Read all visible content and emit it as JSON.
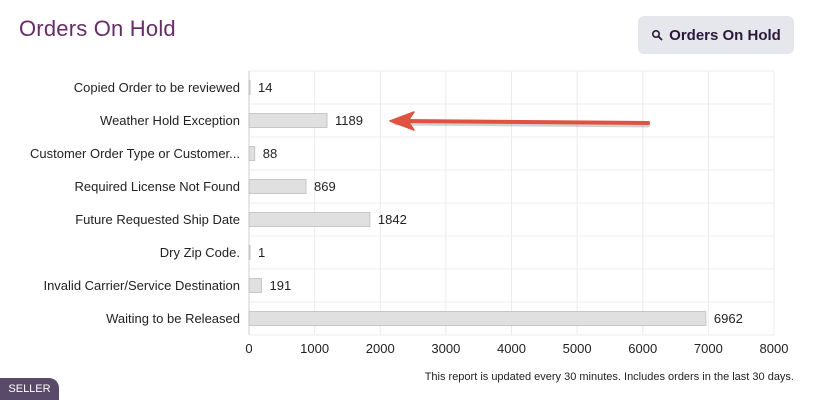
{
  "header": {
    "title": "Orders On Hold",
    "button_label": "Orders On Hold",
    "button_icon": "search-icon"
  },
  "chart_data": {
    "type": "bar",
    "orientation": "horizontal",
    "categories": [
      "Copied Order to be reviewed",
      "Weather Hold Exception",
      "Customer Order Type or Customer...",
      "Required License Not Found",
      "Future Requested Ship Date",
      "Dry Zip Code.",
      "Invalid Carrier/Service Destination",
      "Waiting to be Released"
    ],
    "values": [
      14,
      1189,
      88,
      869,
      1842,
      1,
      191,
      6962
    ],
    "xlim": [
      0,
      8000
    ],
    "xticks": [
      0,
      1000,
      2000,
      3000,
      4000,
      5000,
      6000,
      7000,
      8000
    ],
    "grid": true,
    "bar_color": "#e0e0e0",
    "annotation": {
      "type": "arrow",
      "target_category": "Weather Hold Exception",
      "color": "#e0523f"
    }
  },
  "footer": {
    "note": "This report is updated every 30 minutes. Includes orders in the last 30 days.",
    "badge": "SELLER"
  }
}
